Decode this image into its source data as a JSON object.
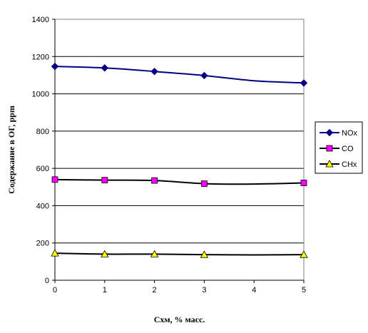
{
  "chart_data": {
    "type": "line",
    "x": [
      0,
      1,
      2,
      3,
      4,
      5
    ],
    "xlim": [
      0,
      5
    ],
    "ylim": [
      0,
      1400
    ],
    "y_ticks": [
      0,
      200,
      400,
      600,
      800,
      1000,
      1200,
      1400
    ],
    "x_ticks": [
      0,
      1,
      2,
      3,
      4,
      5
    ],
    "grid": "horizontal",
    "legend_position": "right",
    "ylabel": "Содержание в ОГ,  ppm",
    "xlabel": "Схм, % масс.",
    "series": [
      {
        "name": "NOx",
        "color": "#000080",
        "marker": "diamond",
        "marker_color": "#000080",
        "marker_x": [
          0,
          1,
          2,
          3,
          5
        ],
        "values": [
          1147,
          1139,
          1120,
          1098,
          1070,
          1058
        ]
      },
      {
        "name": "CO",
        "color": "#000000",
        "marker": "square",
        "marker_color": "#ff00ff",
        "marker_x": [
          0,
          1,
          2,
          3,
          5
        ],
        "values": [
          540,
          537,
          535,
          518,
          516,
          522
        ]
      },
      {
        "name": "CHx",
        "color": "#000000",
        "marker": "triangle",
        "marker_color": "#ffff00",
        "marker_x": [
          0,
          1,
          2,
          3,
          5
        ],
        "values": [
          145,
          140,
          140,
          137,
          136,
          137
        ]
      }
    ]
  }
}
